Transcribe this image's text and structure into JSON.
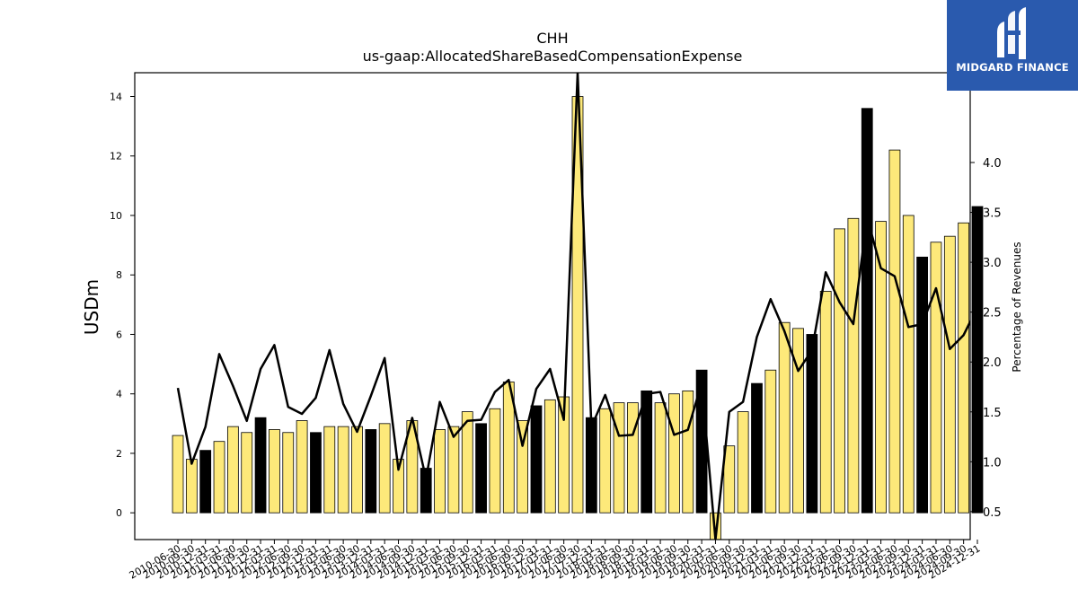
{
  "chart_data": {
    "type": "bar",
    "title": "CHH",
    "subtitle": "us-gaap:AllocatedShareBasedCompensationExpense",
    "ylabel": "USDm",
    "y2label": "Percentage of Revenues",
    "ylim": [
      -0.9,
      14.8
    ],
    "y2lim": [
      0.22,
      4.9
    ],
    "yticks": [
      0,
      2,
      4,
      6,
      8,
      10,
      12,
      14
    ],
    "y2ticks": [
      0.5,
      1.0,
      1.5,
      2.0,
      2.5,
      3.0,
      3.5,
      4.0
    ],
    "y2ticklabels": [
      "0.5",
      "1.0",
      "1.5",
      "2.0",
      "2.5",
      "3.0",
      "3.5",
      "4.0"
    ],
    "categories": [
      "2010-06-30",
      "2010-09-30",
      "2010-12-31",
      "2011-03-31",
      "2011-06-30",
      "2011-09-30",
      "2011-12-31",
      "2012-03-31",
      "2012-06-30",
      "2012-09-30",
      "2012-12-31",
      "2013-03-31",
      "2013-06-30",
      "2013-09-30",
      "2013-12-31",
      "2014-03-31",
      "2014-06-30",
      "2014-09-30",
      "2014-12-31",
      "2015-03-31",
      "2015-06-30",
      "2015-09-30",
      "2015-12-31",
      "2016-03-31",
      "2016-06-30",
      "2016-09-30",
      "2016-12-31",
      "2017-03-31",
      "2017-06-30",
      "2017-09-30",
      "2017-12-31",
      "2018-03-31",
      "2018-06-30",
      "2018-09-30",
      "2018-12-31",
      "2019-03-31",
      "2019-06-30",
      "2019-09-30",
      "2019-12-31",
      "2020-03-31",
      "2020-06-30",
      "2020-09-30",
      "2020-12-31",
      "2021-03-31",
      "2021-06-30",
      "2021-09-30",
      "2021-12-31",
      "2022-03-31",
      "2022-06-30",
      "2022-09-30",
      "2022-12-31",
      "2023-03-31",
      "2023-06-30",
      "2023-09-30",
      "2023-12-31",
      "2024-03-31",
      "2024-06-30",
      "2024-09-30",
      "2024-12-31"
    ],
    "series": [
      {
        "kind": "bar",
        "values": [
          2.6,
          1.8,
          2.1,
          2.4,
          2.9,
          2.7,
          3.2,
          2.8,
          2.7,
          3.1,
          2.7,
          2.9,
          2.9,
          2.9,
          2.8,
          3.0,
          1.8,
          3.1,
          1.5,
          2.8,
          2.9,
          3.4,
          3.0,
          3.5,
          4.4,
          3.1,
          3.6,
          3.8,
          3.9,
          14.0,
          3.2,
          3.5,
          3.7,
          3.7,
          4.1,
          3.7,
          4.0,
          4.1,
          4.8,
          -0.9,
          2.25,
          3.4,
          4.35,
          4.8,
          6.4,
          6.2,
          6.0,
          7.45,
          9.55,
          9.9,
          13.6,
          9.8,
          12.2,
          10.0,
          8.6,
          9.1,
          9.3,
          9.75,
          10.3
        ],
        "highlight": [
          false,
          false,
          true,
          false,
          false,
          false,
          true,
          false,
          false,
          false,
          true,
          false,
          false,
          false,
          true,
          false,
          false,
          false,
          true,
          false,
          false,
          false,
          true,
          false,
          false,
          false,
          true,
          false,
          false,
          false,
          true,
          false,
          false,
          false,
          true,
          false,
          false,
          false,
          true,
          false,
          false,
          false,
          true,
          false,
          false,
          false,
          true,
          false,
          false,
          false,
          true,
          false,
          false,
          false,
          true,
          false,
          false,
          false,
          true
        ]
      },
      {
        "kind": "line",
        "axis": "right",
        "values": [
          1.74,
          0.98,
          1.35,
          2.08,
          1.76,
          1.41,
          1.93,
          2.17,
          1.55,
          1.48,
          1.64,
          2.12,
          1.58,
          1.3,
          1.66,
          2.04,
          0.92,
          1.44,
          0.83,
          1.6,
          1.25,
          1.41,
          1.42,
          1.7,
          1.82,
          1.16,
          1.73,
          1.93,
          1.42,
          4.9,
          1.35,
          1.67,
          1.26,
          1.27,
          1.68,
          1.7,
          1.27,
          1.32,
          1.79,
          0.22,
          1.5,
          1.6,
          2.25,
          2.63,
          2.31,
          1.91,
          2.12,
          2.9,
          2.6,
          2.38,
          3.45,
          2.94,
          2.86,
          2.35,
          2.38,
          2.74,
          2.13,
          2.27,
          2.55
        ]
      }
    ],
    "colors": {
      "bar": "#fde97a",
      "bar_highlight": "#000000",
      "line": "#000000"
    }
  },
  "logo": {
    "text": "MIDGARD FINANCE",
    "bg": "#2a5aae"
  }
}
